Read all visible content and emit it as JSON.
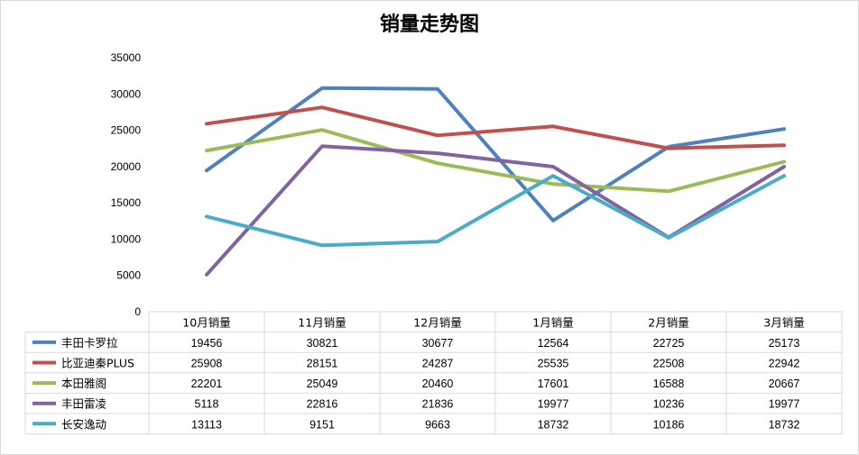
{
  "chart_data": {
    "type": "line",
    "title": "销量走势图",
    "categories": [
      "10月销量",
      "11月销量",
      "12月销量",
      "1月销量",
      "2月销量",
      "3月销量"
    ],
    "ylim": [
      0,
      35000
    ],
    "yticks": [
      0,
      5000,
      10000,
      15000,
      20000,
      25000,
      30000,
      35000
    ],
    "grid": false,
    "legend": "data-table-bottom",
    "series": [
      {
        "name": "丰田卡罗拉",
        "color": "#4f81bd",
        "values": [
          19456,
          30821,
          30677,
          12564,
          22725,
          25173
        ]
      },
      {
        "name": "比亚迪秦PLUS",
        "color": "#c0504d",
        "values": [
          25908,
          28151,
          24287,
          25535,
          22508,
          22942
        ]
      },
      {
        "name": "本田雅阁",
        "color": "#9bbb59",
        "values": [
          22201,
          25049,
          20460,
          17601,
          16588,
          20667
        ]
      },
      {
        "name": "丰田雷凌",
        "color": "#8064a2",
        "values": [
          5118,
          22816,
          21836,
          19977,
          10236,
          19977
        ]
      },
      {
        "name": "长安逸动",
        "color": "#4bacc6",
        "values": [
          13113,
          9151,
          9663,
          18732,
          10186,
          18732
        ]
      }
    ]
  }
}
